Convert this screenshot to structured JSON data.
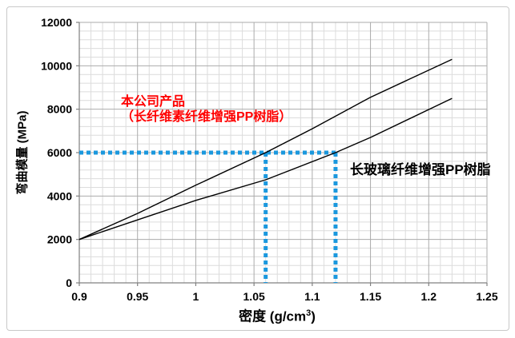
{
  "chart_data": {
    "type": "line",
    "title": "",
    "xlabel": "密度 (g/cm³)",
    "xlabel_prefix": "密度 (g/cm",
    "xlabel_sup": "3",
    "xlabel_suffix": ")",
    "ylabel": "弯曲模量 (MPa)",
    "xlim": [
      0.9,
      1.25
    ],
    "ylim": [
      0,
      12000
    ],
    "x_tick_values": [
      0.9,
      0.95,
      1,
      1.05,
      1.1,
      1.15,
      1.2,
      1.25
    ],
    "x_tick_labels": [
      "0.9",
      "0.95",
      "1",
      "1.05",
      "1.1",
      "1.15",
      "1.2",
      "1.25"
    ],
    "y_tick_values": [
      0,
      2000,
      4000,
      6000,
      8000,
      10000,
      12000
    ],
    "y_tick_labels": [
      "0",
      "2000",
      "4000",
      "6000",
      "8000",
      "10000",
      "12000"
    ],
    "minor_x_step": 0.01,
    "minor_y_step": 400,
    "grid": "on",
    "legend_position": "none",
    "series": [
      {
        "name": "本公司产品（长纤维素纤维增强PP树脂）",
        "color": "#000000",
        "x": [
          0.9,
          0.95,
          1.0,
          1.06,
          1.1,
          1.15,
          1.22
        ],
        "y": [
          2000,
          3200,
          4500,
          6000,
          7100,
          8550,
          10300
        ]
      },
      {
        "name": "长玻璃纤维增强PP树脂",
        "color": "#000000",
        "x": [
          0.9,
          0.95,
          1.0,
          1.06,
          1.12,
          1.15,
          1.22
        ],
        "y": [
          2000,
          2900,
          3800,
          4750,
          6000,
          6700,
          8500
        ]
      }
    ],
    "guides": {
      "color": "#1b98de",
      "horizontal": {
        "y": 6000,
        "x_from": 0.9,
        "x_to": 1.12
      },
      "verticals": [
        {
          "x": 1.06,
          "y_from": 0,
          "y_to": 6000
        },
        {
          "x": 1.12,
          "y_from": 0,
          "y_to": 6000
        }
      ]
    },
    "annotations": {
      "company": {
        "line1": "本公司产品",
        "line2": "（长纤维素纤维增强PP树脂）",
        "color": "#ff0000"
      },
      "competitor": {
        "text": "长玻璃纤维增强PP树脂",
        "color": "#000000"
      }
    }
  }
}
